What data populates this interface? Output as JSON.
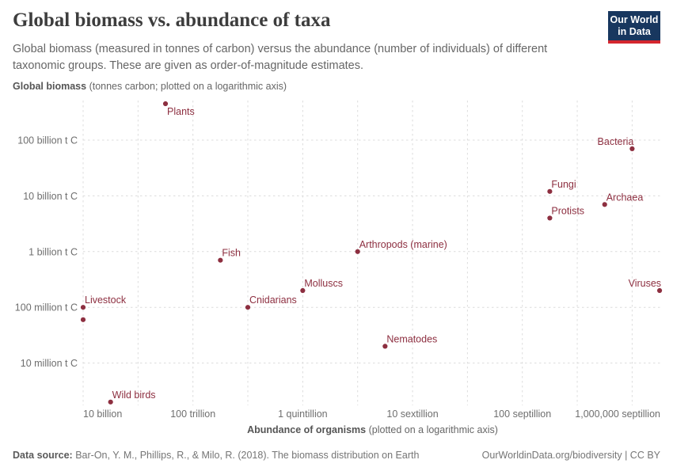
{
  "header": {
    "title": "Global biomass vs. abundance of taxa",
    "subtitle": "Global biomass (measured in tonnes of carbon) versus the abundance (number of individuals) of different taxonomic groups. These are given as order-of-magnitude estimates.",
    "logo_line1": "Our World",
    "logo_line2": "in Data"
  },
  "axis_titles": {
    "y_bold": "Global biomass",
    "y_rest": " (tonnes carbon; plotted on a logarithmic axis)",
    "x_bold": "Abundance of organisms",
    "x_rest": " (plotted on a logarithmic axis)"
  },
  "footer": {
    "source_bold": "Data source:",
    "source_rest": " Bar-On, Y. M., Phillips, R., & Milo, R. (2018). The biomass distribution on Earth",
    "credit": "OurWorldinData.org/biodiversity | CC BY"
  },
  "colors": {
    "accent": "#8d2f40",
    "grid": "#dcdcdc",
    "tick_text": "#6e6e6e",
    "logo_navy": "#18375f",
    "logo_red": "#d4262e"
  },
  "chart_data": {
    "type": "scatter",
    "title": "Global biomass vs. abundance of taxa",
    "xlabel": "Abundance of organisms (plotted on a logarithmic axis)",
    "ylabel": "Global biomass (tonnes carbon; plotted on a logarithmic axis)",
    "x_scale": "log10",
    "y_scale": "log10",
    "x_range_log10": [
      10,
      31.2
    ],
    "y_range_log10": [
      6.25,
      11.75
    ],
    "grid": "dashed; vertical gridlines every 2 decades, horizontal every decade; legend: none",
    "x_ticks": [
      {
        "label": "10 billion",
        "log10": 10,
        "anchor": "start"
      },
      {
        "label": "100 trillion",
        "log10": 14,
        "anchor": "middle"
      },
      {
        "label": "1 quintillion",
        "log10": 18,
        "anchor": "middle"
      },
      {
        "label": "10 sextillion",
        "log10": 22,
        "anchor": "middle"
      },
      {
        "label": "100 septillion",
        "log10": 26,
        "anchor": "middle"
      },
      {
        "label": "1,000,000 septillion",
        "log10": 30,
        "anchor": "end"
      }
    ],
    "y_ticks": [
      {
        "label": "100 billion t C",
        "log10": 11
      },
      {
        "label": "10 billion t C",
        "log10": 10
      },
      {
        "label": "1 billion t C",
        "log10": 9
      },
      {
        "label": "100 million t C",
        "log10": 8
      },
      {
        "label": "10 million t C",
        "log10": 7
      }
    ],
    "points": [
      {
        "label": "Plants",
        "abundance_log10": 13,
        "biomass_t_c": 450000000000.0,
        "placement": "below"
      },
      {
        "label": "Bacteria",
        "abundance_log10": 30,
        "biomass_t_c": 70000000000.0,
        "placement": "above-end"
      },
      {
        "label": "Fungi",
        "abundance_log10": 27,
        "biomass_t_c": 12000000000.0,
        "placement": "above"
      },
      {
        "label": "Archaea",
        "abundance_log10": 29,
        "biomass_t_c": 7000000000.0,
        "placement": "above"
      },
      {
        "label": "Protists",
        "abundance_log10": 27,
        "biomass_t_c": 4000000000.0,
        "placement": "above"
      },
      {
        "label": "Arthropods (marine)",
        "abundance_log10": 20,
        "biomass_t_c": 1000000000.0,
        "placement": "above"
      },
      {
        "label": "Fish",
        "abundance_log10": 15,
        "biomass_t_c": 700000000.0,
        "placement": "above"
      },
      {
        "label": "Viruses",
        "abundance_log10": 31,
        "biomass_t_c": 200000000.0,
        "placement": "above-end"
      },
      {
        "label": "Molluscs",
        "abundance_log10": 18,
        "biomass_t_c": 200000000.0,
        "placement": "above"
      },
      {
        "label": "Cnidarians",
        "abundance_log10": 16,
        "biomass_t_c": 100000000.0,
        "placement": "above"
      },
      {
        "label": "Livestock",
        "abundance_log10": 10,
        "biomass_t_c": 100000000.0,
        "placement": "above"
      },
      {
        "label": "",
        "abundance_log10": 10,
        "biomass_t_c": 60000000.0,
        "placement": "none"
      },
      {
        "label": "Nematodes",
        "abundance_log10": 21,
        "biomass_t_c": 20000000.0,
        "placement": "above"
      },
      {
        "label": "Wild birds",
        "abundance_log10": 11,
        "biomass_t_c": 2000000.0,
        "placement": "above"
      }
    ]
  }
}
